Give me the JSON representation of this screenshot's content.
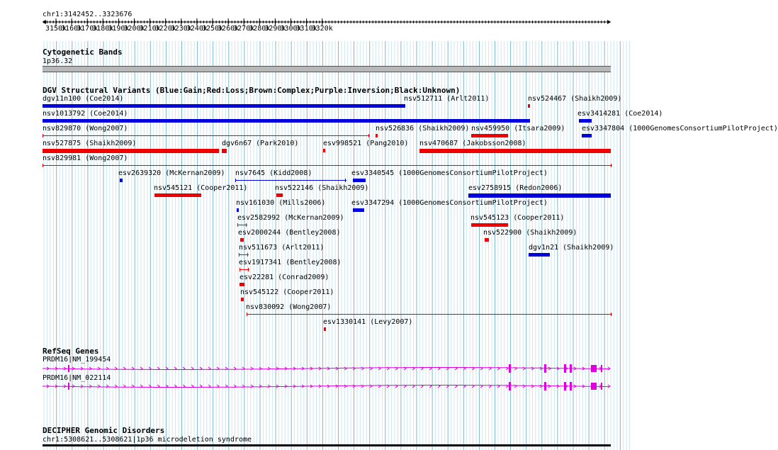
{
  "ruler": {
    "range_label": "chr1:3142452..3323676",
    "ticks": [
      "3150k",
      "3160k",
      "3170k",
      "3180k",
      "3190k",
      "3200k",
      "3210k",
      "3220k",
      "3230k",
      "3240k",
      "3250k",
      "3260k",
      "3270k",
      "3280k",
      "3290k",
      "3300k",
      "3310k",
      "3320k"
    ]
  },
  "cytogenetic": {
    "title": "Cytogenetic Bands",
    "band": "1p36.32"
  },
  "dgv": {
    "title": "DGV Structural Variants (Blue:Gain;Red:Loss;Brown:Complex;Purple:Inversion;Black:Unknown)",
    "colors": {
      "gain": "#0000dd",
      "loss": "#ee0000",
      "complex": "#a0522d",
      "inversion": "#800080",
      "unknown": "#000000"
    },
    "features": [
      {
        "label": "dgv11n100 (Coe2014)",
        "type": "gain"
      },
      {
        "label": "nsv512711 (Arlt2011)",
        "type": "gain"
      },
      {
        "label": "nsv524467 (Shaikh2009)",
        "type": "loss"
      },
      {
        "label": "nsv1013792 (Coe2014)",
        "type": "gain"
      },
      {
        "label": "esv3414281 (Coe2014)",
        "type": "gain"
      },
      {
        "label": "nsv829870 (Wong2007)",
        "type": "loss"
      },
      {
        "label": "nsv526836 (Shaikh2009)",
        "type": "loss"
      },
      {
        "label": "nsv459950 (Itsara2009)",
        "type": "loss"
      },
      {
        "label": "esv3347804 (1000GenomesConsortiumPilotProject)",
        "type": "gain"
      },
      {
        "label": "nsv527875 (Shaikh2009)",
        "type": "loss"
      },
      {
        "label": "dgv6n67 (Park2010)",
        "type": "loss"
      },
      {
        "label": "esv998521 (Pang2010)",
        "type": "loss"
      },
      {
        "label": "nsv470687 (Jakobsson2008)",
        "type": "loss"
      },
      {
        "label": "nsv829981 (Wong2007)",
        "type": "loss"
      },
      {
        "label": "esv2639320 (McKernan2009)",
        "type": "gain"
      },
      {
        "label": "nsv7645 (Kidd2008)",
        "type": "gain"
      },
      {
        "label": "esv3340545 (1000GenomesConsortiumPilotProject)",
        "type": "gain"
      },
      {
        "label": "nsv545121 (Cooper2011)",
        "type": "loss"
      },
      {
        "label": "nsv522146 (Shaikh2009)",
        "type": "loss"
      },
      {
        "label": "esv2758915 (Redon2006)",
        "type": "gain"
      },
      {
        "label": "nsv161030 (Mills2006)",
        "type": "gain"
      },
      {
        "label": "esv3347294 (1000GenomesConsortiumPilotProject)",
        "type": "gain"
      },
      {
        "label": "esv2582992 (McKernan2009)",
        "type": "loss"
      },
      {
        "label": "nsv545123 (Cooper2011)",
        "type": "loss"
      },
      {
        "label": "esv2000244 (Bentley2008)",
        "type": "loss"
      },
      {
        "label": "nsv522900 (Shaikh2009)",
        "type": "loss"
      },
      {
        "label": "nsv511673 (Arlt2011)",
        "type": "loss"
      },
      {
        "label": "dgv1n21 (Shaikh2009)",
        "type": "gain"
      },
      {
        "label": "esv1917341 (Bentley2008)",
        "type": "loss"
      },
      {
        "label": "esv22281 (Conrad2009)",
        "type": "loss"
      },
      {
        "label": "nsv545122 (Cooper2011)",
        "type": "loss"
      },
      {
        "label": "nsv830092 (Wong2007)",
        "type": "loss"
      },
      {
        "label": "esv1330141 (Levy2007)",
        "type": "loss"
      }
    ]
  },
  "refseq": {
    "title": "RefSeq Genes",
    "color": "#dd00dd",
    "transcripts": [
      {
        "label": "PRDM16|NM_199454"
      },
      {
        "label": "PRDM16|NM_022114"
      }
    ]
  },
  "decipher": {
    "title": "DECIPHER Genomic Disorders",
    "entry": "chr1:5308621..5308621|1p36 microdeletion syndrome"
  }
}
